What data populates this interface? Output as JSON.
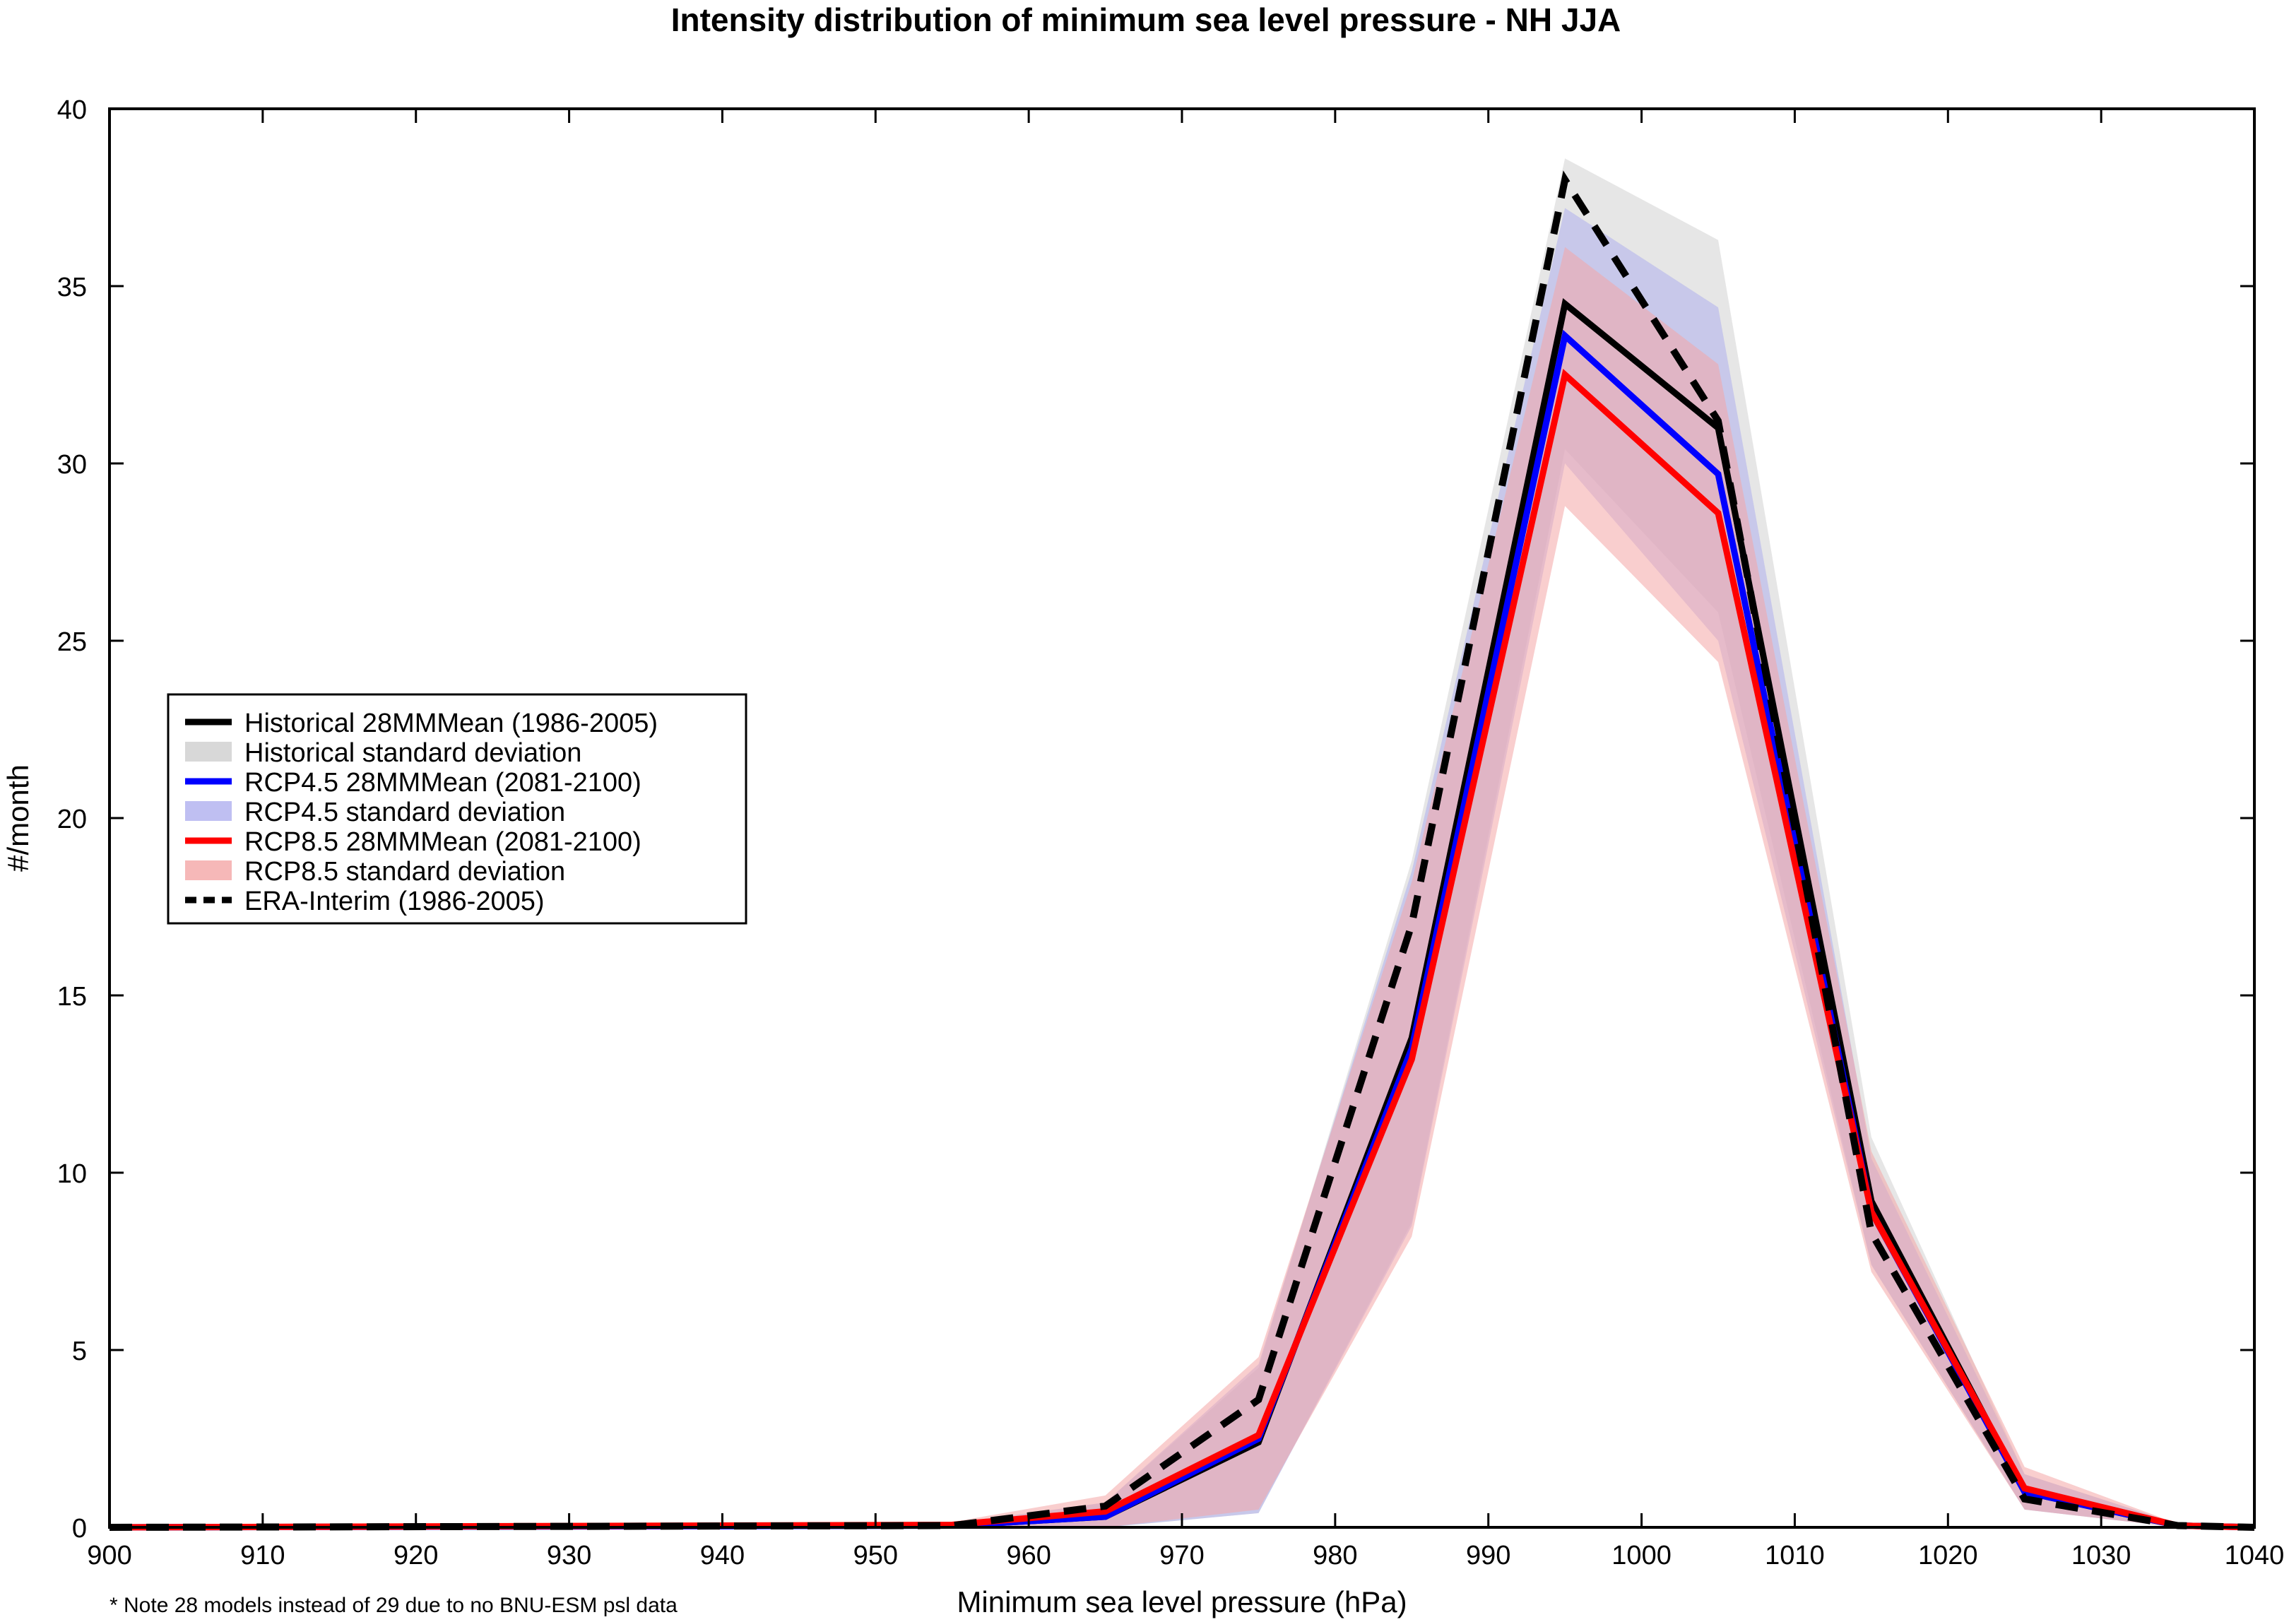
{
  "chart_data": {
    "type": "line",
    "title": "Intensity distribution of minimum sea level pressure - NH JJA",
    "xlabel": "Minimum sea level pressure (hPa)",
    "ylabel": "#/month",
    "footnote": "* Note 28 models instead of 29 due to no BNU-ESM psl data",
    "xlim": [
      900,
      1040
    ],
    "ylim": [
      0,
      40
    ],
    "xticks": [
      900,
      910,
      920,
      930,
      940,
      950,
      960,
      970,
      980,
      990,
      1000,
      1010,
      1020,
      1030,
      1040
    ],
    "yticks": [
      0,
      5,
      10,
      15,
      20,
      25,
      30,
      35,
      40
    ],
    "x": [
      900,
      955,
      965,
      975,
      985,
      995,
      1005,
      1015,
      1025,
      1035,
      1040
    ],
    "series": [
      {
        "name": "Historical 28MMMean (1986-2005)",
        "kind": "line",
        "color": "#000000",
        "dash": "solid",
        "values": [
          0,
          0.05,
          0.3,
          2.4,
          13.8,
          34.5,
          31.0,
          9.2,
          1.0,
          0.05,
          0
        ]
      },
      {
        "name": "Historical standard deviation",
        "kind": "band",
        "color": "#c8c8c8",
        "opacity": 0.45,
        "lower": [
          0,
          0,
          0,
          0.4,
          8.6,
          30.4,
          25.8,
          7.4,
          0.5,
          0,
          0
        ],
        "upper": [
          0,
          0.1,
          0.7,
          4.5,
          18.8,
          38.6,
          36.3,
          11.0,
          1.5,
          0.1,
          0
        ]
      },
      {
        "name": "RCP4.5 28MMMean (2081-2100)",
        "kind": "line",
        "color": "#0000ff",
        "dash": "solid",
        "values": [
          0,
          0.05,
          0.3,
          2.5,
          13.5,
          33.6,
          29.7,
          8.9,
          1.0,
          0.05,
          0
        ]
      },
      {
        "name": "RCP4.5 standard deviation",
        "kind": "band",
        "color": "#aaaaee",
        "opacity": 0.5,
        "lower": [
          0,
          0,
          0,
          0.4,
          8.5,
          30.0,
          25.0,
          7.4,
          0.5,
          0,
          0
        ],
        "upper": [
          0,
          0.1,
          0.7,
          4.6,
          18.5,
          37.2,
          34.4,
          10.4,
          1.5,
          0.1,
          0
        ]
      },
      {
        "name": "RCP8.5 28MMMean (2081-2100)",
        "kind": "line",
        "color": "#ff0000",
        "dash": "solid",
        "values": [
          0,
          0.07,
          0.45,
          2.6,
          13.2,
          32.5,
          28.6,
          8.9,
          1.1,
          0.05,
          0
        ]
      },
      {
        "name": "RCP8.5 standard deviation",
        "kind": "band",
        "color": "#f4a6a6",
        "opacity": 0.55,
        "lower": [
          0,
          0,
          0,
          0.5,
          8.2,
          28.8,
          24.4,
          7.2,
          0.5,
          0,
          0
        ],
        "upper": [
          0,
          0.15,
          0.9,
          4.8,
          18.2,
          36.1,
          32.8,
          10.6,
          1.7,
          0.1,
          0
        ]
      },
      {
        "name": "ERA-Interim (1986-2005)",
        "kind": "line",
        "color": "#000000",
        "dash": "dashed",
        "values": [
          0,
          0.05,
          0.6,
          3.6,
          17.0,
          38.0,
          31.2,
          8.3,
          0.8,
          0.05,
          0
        ]
      }
    ],
    "legend_placement": "left-middle",
    "grid": false
  }
}
